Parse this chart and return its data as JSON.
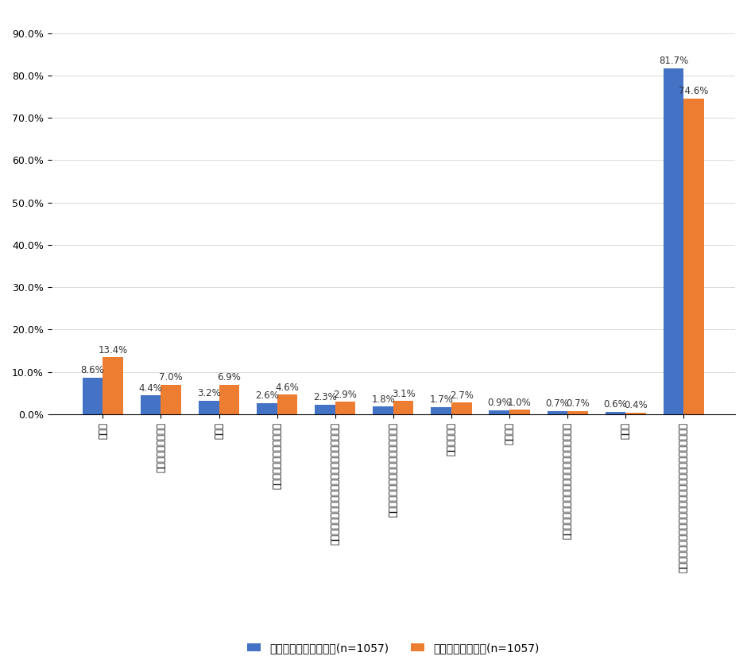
{
  "categories": [
    "税理士",
    "行政書士・司法書士",
    "弁護士",
    "フィナンシャルプランナー",
    "自身の親の取引先銀行等（信金、信組等を含む）",
    "自身の取引先銀行等（信金、信組等）",
    "生命保険会社",
    "証券会社",
    "これまで取引の無い銀行等（主に信遲銀行等）",
    "その他",
    "外部の専門家等に相談したことはない、相談したい先はない"
  ],
  "blue_values": [
    8.6,
    4.4,
    3.2,
    2.6,
    2.3,
    1.8,
    1.7,
    0.9,
    0.7,
    0.6,
    81.7
  ],
  "orange_values": [
    13.4,
    7.0,
    6.9,
    4.6,
    2.9,
    3.1,
    2.7,
    1.0,
    0.7,
    0.4,
    74.6
  ],
  "blue_color": "#4472C4",
  "orange_color": "#ED7D31",
  "ylim": [
    0,
    95
  ],
  "yticks": [
    0.0,
    10.0,
    20.0,
    30.0,
    40.0,
    50.0,
    60.0,
    70.0,
    80.0,
    90.0
  ],
  "legend_blue": "これまでに相談した先(n=1057)",
  "legend_orange": "今後相談したい先(n=1057)",
  "bar_width": 0.35,
  "label_fontsize": 8.5,
  "tick_fontsize": 9
}
